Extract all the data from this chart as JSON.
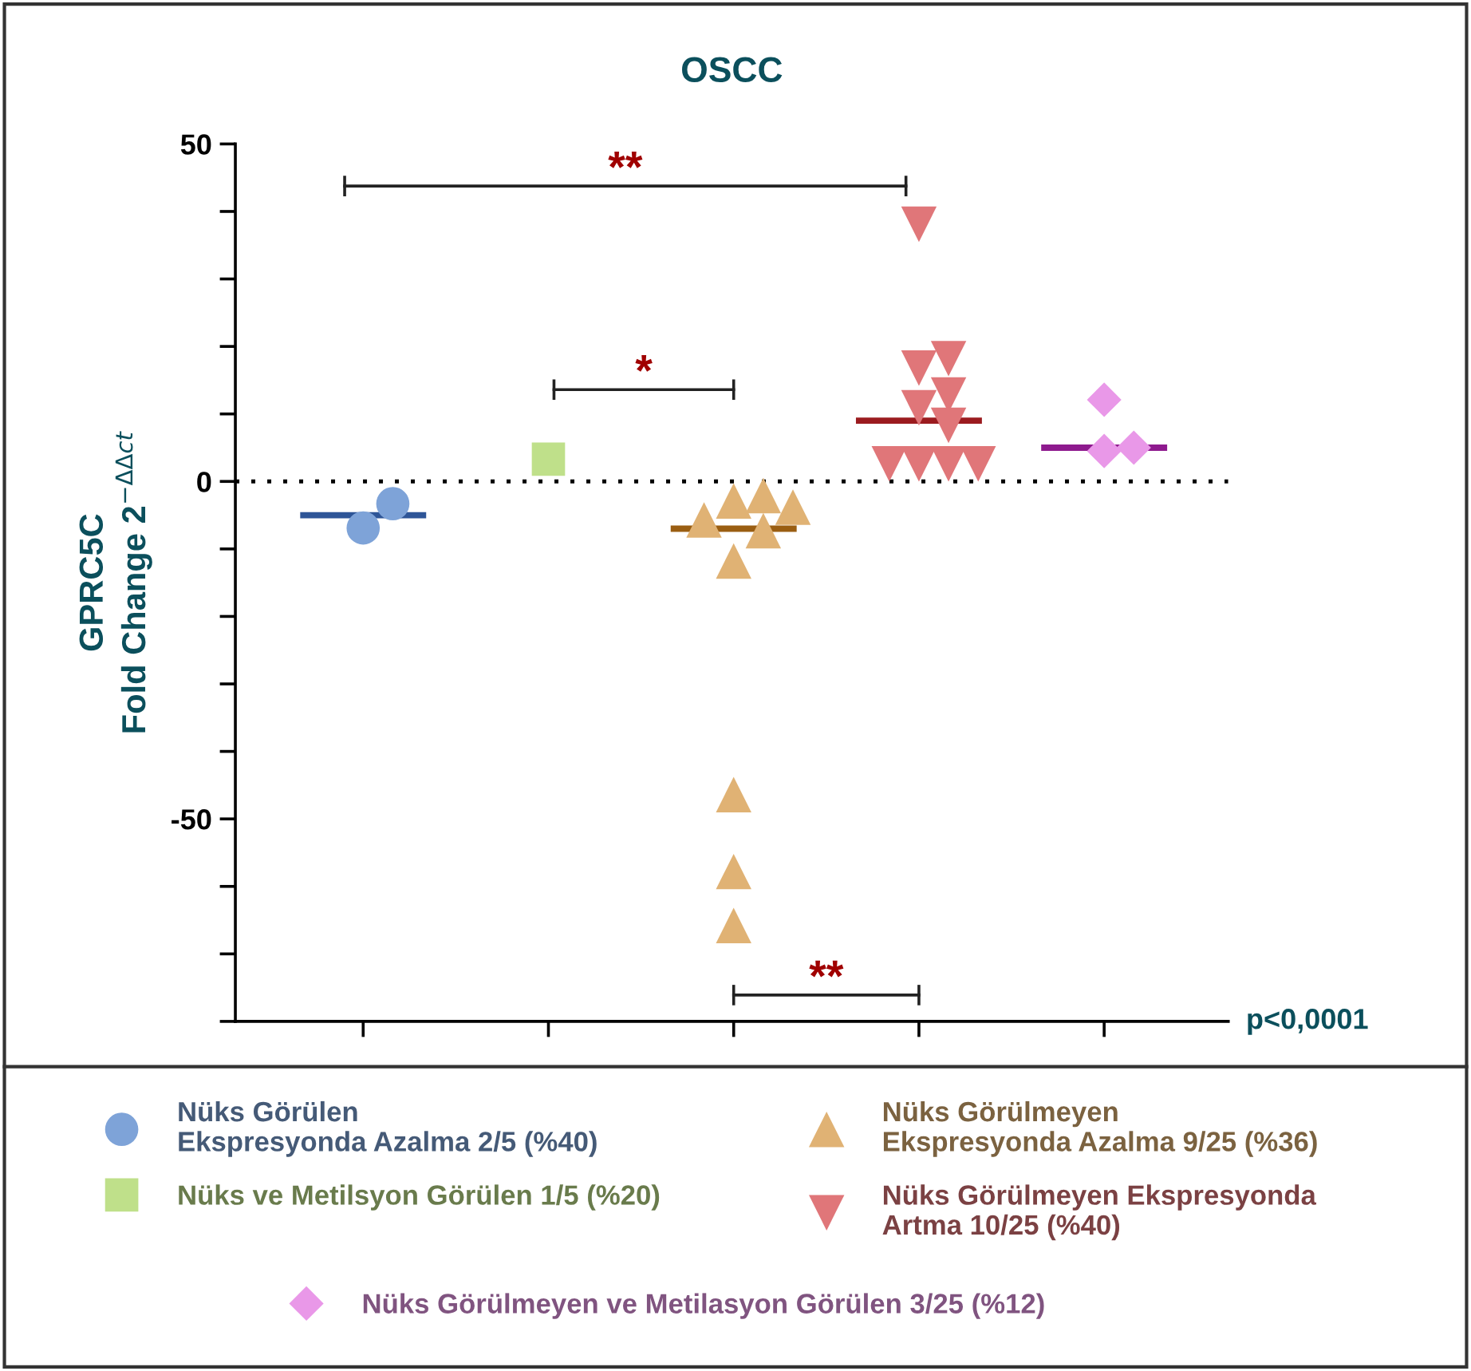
{
  "chart_data": {
    "type": "scatter",
    "title": "OSCC",
    "ylabel": "GPRC5C\nFold Change 2$^{−ΔΔct}$",
    "categories": [
      null,
      null,
      null,
      null,
      null
    ],
    "series": [
      {
        "name": "Nüks Görülen\nEkspresyonda Azalma 2/5 (%40)",
        "color": "#7ea3d8",
        "marker": "circle",
        "values": [
          -6.9,
          null,
          null,
          null,
          null
        ]
      },
      {
        "color": "#7ea3d8",
        "marker": "circle",
        "values": [
          -3.3,
          null,
          null,
          null,
          null
        ]
      },
      {
        "name": "Nüks ve Metilsyon Görülen 1/5 (%20)",
        "color": "#bfe08a",
        "marker": "square",
        "values": [
          null,
          3.3,
          null,
          null,
          null
        ]
      },
      {
        "name": "Nüks Görülmeyen\nEkspresyonda Azalma 9/25 (%36)",
        "color": "#e0b274",
        "marker": "triangle",
        "values": [
          null,
          null,
          -2.9,
          null,
          null
        ]
      },
      {
        "color": "#e0b274",
        "marker": "triangle",
        "values": [
          null,
          null,
          -7.3,
          null,
          null
        ]
      },
      {
        "color": "#e0b274",
        "marker": "triangle",
        "values": [
          null,
          null,
          -5.7,
          null,
          null
        ]
      },
      {
        "color": "#e0b274",
        "marker": "triangle",
        "values": [
          null,
          null,
          -3.8,
          null,
          null
        ]
      },
      {
        "color": "#e0b274",
        "marker": "triangle",
        "values": [
          null,
          null,
          -2.1,
          null,
          null
        ]
      },
      {
        "color": "#e0b274",
        "marker": "triangle",
        "values": [
          null,
          null,
          -11.8,
          null,
          null
        ]
      },
      {
        "color": "#e0b274",
        "marker": "triangle",
        "values": [
          null,
          null,
          -46.4,
          null,
          null
        ]
      },
      {
        "color": "#e0b274",
        "marker": "triangle",
        "values": [
          null,
          null,
          -57.8,
          null,
          null
        ]
      },
      {
        "color": "#e0b274",
        "marker": "triangle",
        "values": [
          null,
          null,
          -65.8,
          null,
          null
        ]
      },
      {
        "name": "Nüks Görülmeyen Ekspresyonda\nArtma 10/25 (%40)",
        "color": "#e07679",
        "marker": "triangle_down",
        "values": [
          null,
          null,
          null,
          38.1,
          null
        ]
      },
      {
        "color": "#e07679",
        "marker": "triangle_down",
        "values": [
          null,
          null,
          null,
          16.8,
          null
        ]
      },
      {
        "color": "#e07679",
        "marker": "triangle_down",
        "values": [
          null,
          null,
          null,
          18.2,
          null
        ]
      },
      {
        "color": "#e07679",
        "marker": "triangle_down",
        "values": [
          null,
          null,
          null,
          10.9,
          null
        ]
      },
      {
        "color": "#e07679",
        "marker": "triangle_down",
        "values": [
          null,
          null,
          null,
          12.8,
          null
        ]
      },
      {
        "color": "#e07679",
        "marker": "triangle_down",
        "values": [
          null,
          null,
          null,
          8.3,
          null
        ]
      },
      {
        "color": "#e07679",
        "marker": "triangle_down",
        "values": [
          null,
          null,
          null,
          2.6,
          null
        ]
      },
      {
        "color": "#e07679",
        "marker": "triangle_down",
        "values": [
          null,
          null,
          null,
          2.6,
          null
        ]
      },
      {
        "color": "#e07679",
        "marker": "triangle_down",
        "values": [
          null,
          null,
          null,
          2.6,
          null
        ]
      },
      {
        "color": "#e07679",
        "marker": "triangle_down",
        "values": [
          null,
          null,
          null,
          2.6,
          null
        ]
      },
      {
        "name": "Nüks Görülmeyen ve Metilasyon Görülen 3/25 (%12)",
        "color": "#e998e8",
        "marker": "diamond",
        "values": [
          null,
          null,
          null,
          null,
          4.5
        ]
      },
      {
        "color": "#e998e8",
        "marker": "diamond",
        "values": [
          null,
          null,
          null,
          null,
          12.1
        ]
      },
      {
        "color": "#e998e8",
        "marker": "diamond",
        "values": [
          null,
          null,
          null,
          null,
          5.0
        ]
      }
    ],
    "ylim": [
      -80,
      50
    ],
    "yticks": [
      {
        "value": -80,
        "label": null
      },
      {
        "value": -70,
        "label": null
      },
      {
        "value": -60,
        "label": null
      },
      -50,
      {
        "value": -40,
        "label": null
      },
      {
        "value": -30,
        "label": null
      },
      {
        "value": -20,
        "label": null
      },
      {
        "value": -10,
        "label": null
      },
      0,
      {
        "value": 10,
        "label": null
      },
      {
        "value": 20,
        "label": null
      },
      {
        "value": 30,
        "label": null
      },
      {
        "value": 40,
        "label": null
      },
      50
    ],
    "ref_lines": [
      {
        "axis": "y",
        "value": 0,
        "color": "#000000",
        "line_style": "dotted"
      },
      {
        "axis": "y",
        "value": -5,
        "color": "#2e5597",
        "line_style": "solid"
      },
      {
        "axis": "y",
        "value": -7,
        "color": "#9a5e12",
        "line_style": "solid"
      },
      {
        "axis": "y",
        "value": 9,
        "color": "#9b1b1f",
        "line_style": "solid"
      },
      {
        "axis": "y",
        "value": 5,
        "color": "#8e1a8e",
        "line_style": "solid"
      }
    ],
    "annotations": [
      "**",
      "*",
      "**",
      "p<0,0001"
    ],
    "legend": "bottom"
  }
}
